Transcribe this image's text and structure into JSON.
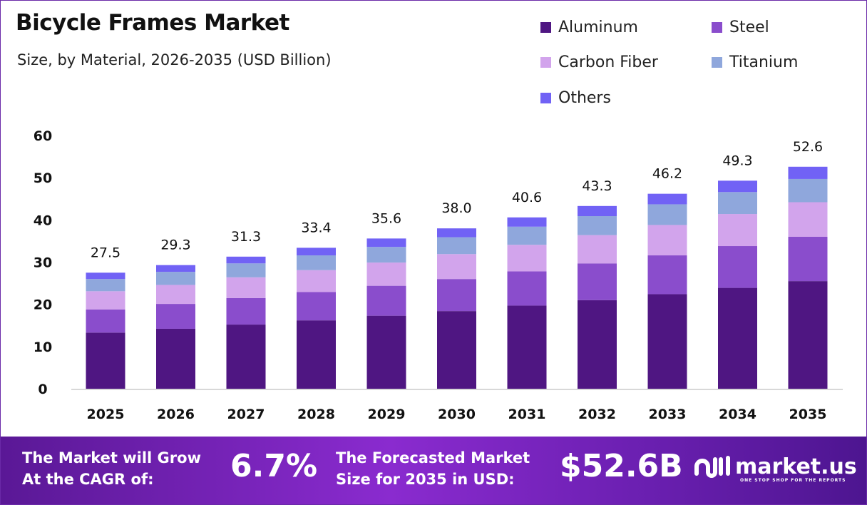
{
  "chart_data": {
    "type": "bar",
    "stacked": true,
    "title": "Bicycle Frames Market",
    "subtitle": "Size, by Material, 2026-2035 (USD Billion)",
    "categories": [
      "2025",
      "2026",
      "2027",
      "2028",
      "2029",
      "2030",
      "2031",
      "2032",
      "2033",
      "2034",
      "2035"
    ],
    "totals": [
      "27.5",
      "29.3",
      "31.3",
      "33.4",
      "35.6",
      "38.0",
      "40.6",
      "43.3",
      "46.2",
      "49.3",
      "52.6"
    ],
    "series": [
      {
        "name": "Aluminum",
        "color": "#4f1682",
        "values": [
          13.3,
          14.2,
          15.2,
          16.2,
          17.3,
          18.4,
          19.7,
          21.0,
          22.4,
          23.9,
          25.5
        ]
      },
      {
        "name": "Steel",
        "color": "#8a4dcc",
        "values": [
          5.5,
          5.9,
          6.3,
          6.7,
          7.1,
          7.6,
          8.1,
          8.7,
          9.2,
          9.9,
          10.5
        ]
      },
      {
        "name": "Carbon Fiber",
        "color": "#d2a4ec",
        "values": [
          4.3,
          4.5,
          4.9,
          5.2,
          5.5,
          5.9,
          6.3,
          6.7,
          7.2,
          7.6,
          8.2
        ]
      },
      {
        "name": "Titanium",
        "color": "#8fa7dc",
        "values": [
          2.9,
          3.1,
          3.3,
          3.5,
          3.7,
          4.0,
          4.3,
          4.5,
          4.9,
          5.2,
          5.5
        ]
      },
      {
        "name": "Others",
        "color": "#7162f5",
        "values": [
          1.5,
          1.6,
          1.6,
          1.8,
          2.0,
          2.1,
          2.2,
          2.4,
          2.5,
          2.7,
          2.9
        ]
      }
    ],
    "yticks": [
      "0",
      "10",
      "20",
      "30",
      "40",
      "50",
      "60"
    ],
    "ylim": [
      0,
      60
    ],
    "grid": false,
    "legend_position": "top-right"
  },
  "footer": {
    "cagr_label_1": "The Market will Grow",
    "cagr_label_2": "At the CAGR of:",
    "cagr_value": "6.7%",
    "forecast_label_1": "The Forecasted Market",
    "forecast_label_2": "Size for 2035 in USD:",
    "forecast_value": "$52.6B",
    "brand": "market.us",
    "tagline": "ONE STOP SHOP FOR THE REPORTS"
  }
}
